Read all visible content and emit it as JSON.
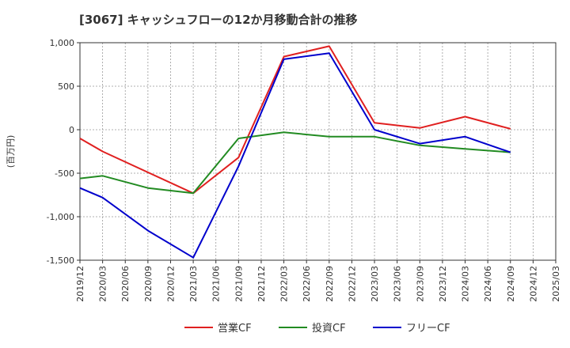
{
  "chart_data": {
    "type": "line",
    "title": "[3067]  キャッシュフローの12か月移動合計の推移",
    "ylabel": "(百万円)",
    "xlabel": "",
    "ylim": [
      -1500,
      1000
    ],
    "yticks": [
      1000,
      500,
      0,
      -500,
      -1000,
      -1500
    ],
    "ytick_labels": [
      "1,000",
      "500",
      "0",
      "-500",
      "-1,000",
      "-1,500"
    ],
    "categories": [
      "2019/12",
      "2020/03",
      "2020/06",
      "2020/09",
      "2020/12",
      "2021/03",
      "2021/06",
      "2021/09",
      "2021/12",
      "2022/03",
      "2022/06",
      "2022/09",
      "2022/12",
      "2023/03",
      "2023/06",
      "2023/09",
      "2023/12",
      "2024/03",
      "2024/06",
      "2024/09",
      "2024/12",
      "2025/03"
    ],
    "grid": true,
    "legend_position": "bottom",
    "series": [
      {
        "name": "営業CF",
        "color": "#e02020",
        "values": [
          -100,
          -250,
          null,
          null,
          null,
          -730,
          null,
          -320,
          null,
          840,
          null,
          960,
          null,
          80,
          null,
          20,
          null,
          150,
          null,
          10,
          null,
          null
        ]
      },
      {
        "name": "投資CF",
        "color": "#228b22",
        "values": [
          -560,
          -530,
          null,
          -670,
          null,
          -730,
          null,
          -100,
          null,
          -30,
          null,
          -80,
          null,
          -80,
          null,
          -180,
          null,
          -220,
          null,
          -260,
          null,
          null
        ]
      },
      {
        "name": "フリーCF",
        "color": "#0000cc",
        "values": [
          -670,
          -780,
          null,
          -1160,
          null,
          -1470,
          null,
          -420,
          null,
          810,
          null,
          880,
          null,
          0,
          null,
          -160,
          null,
          -80,
          null,
          -260,
          null,
          null
        ]
      }
    ]
  }
}
